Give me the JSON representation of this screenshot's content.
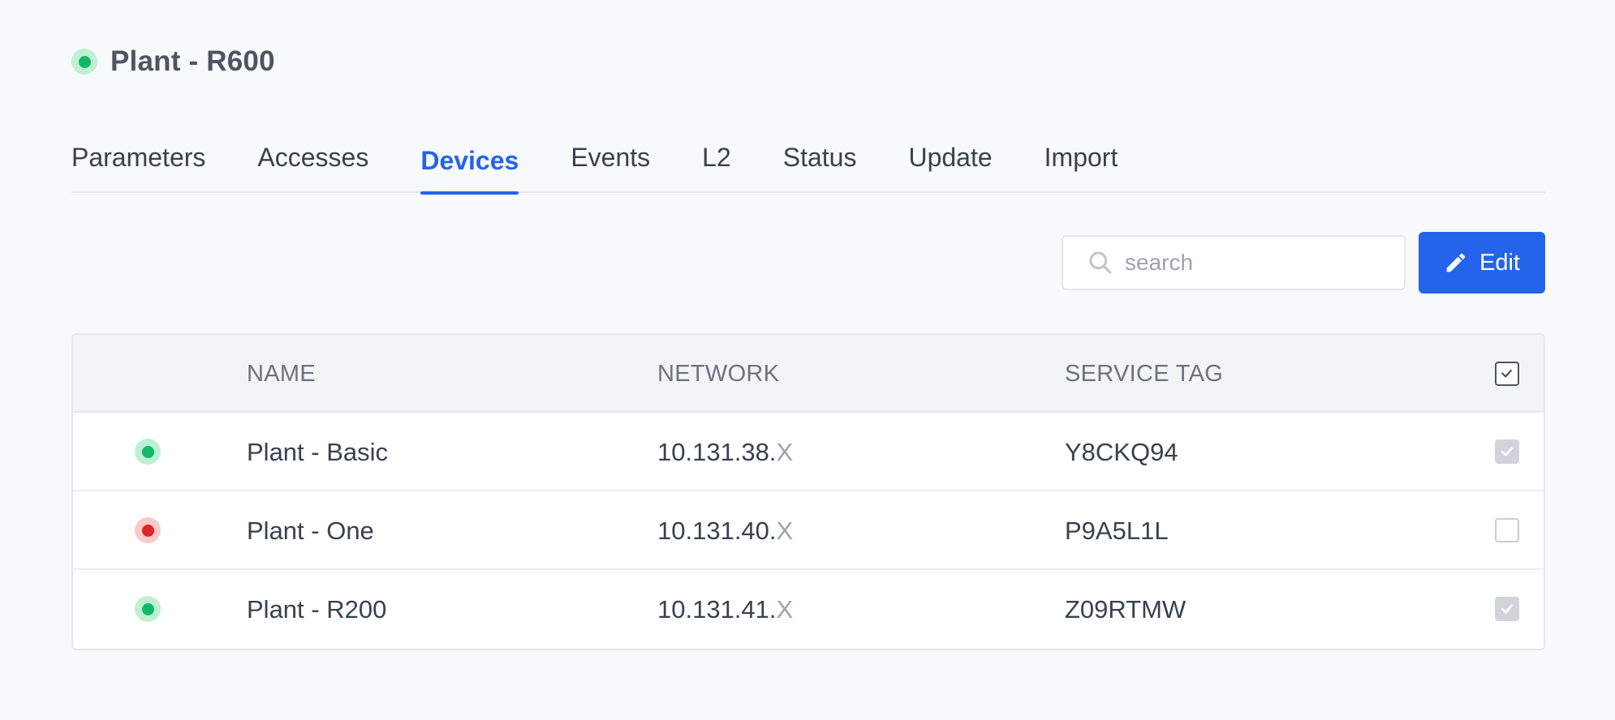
{
  "header": {
    "title": "Plant - R600",
    "status": "online"
  },
  "tabs": [
    {
      "label": "Parameters",
      "active": false
    },
    {
      "label": "Accesses",
      "active": false
    },
    {
      "label": "Devices",
      "active": true
    },
    {
      "label": "Events",
      "active": false
    },
    {
      "label": "L2",
      "active": false
    },
    {
      "label": "Status",
      "active": false
    },
    {
      "label": "Update",
      "active": false
    },
    {
      "label": "Import",
      "active": false
    }
  ],
  "toolbar": {
    "search_placeholder": "search",
    "search_value": "",
    "edit_label": "Edit",
    "search_icon": "search-icon",
    "edit_icon": "pencil-icon"
  },
  "table": {
    "columns": {
      "name": "NAME",
      "network": "NETWORK",
      "service_tag": "SERVICE TAG"
    },
    "rows": [
      {
        "status": "ok",
        "name": "Plant - Basic",
        "network_prefix": "10.131.38.",
        "network_suffix": "X",
        "service_tag": "Y8CKQ94",
        "checked": true
      },
      {
        "status": "error",
        "name": "Plant - One",
        "network_prefix": "10.131.40.",
        "network_suffix": "X",
        "service_tag": "P9A5L1L",
        "checked": false
      },
      {
        "status": "ok",
        "name": "Plant - R200",
        "network_prefix": "10.131.41.",
        "network_suffix": "X",
        "service_tag": "Z09RTMW",
        "checked": true
      }
    ]
  },
  "colors": {
    "accent": "#2563eb",
    "status_ok": "#10b968",
    "status_error": "#dc2626"
  }
}
